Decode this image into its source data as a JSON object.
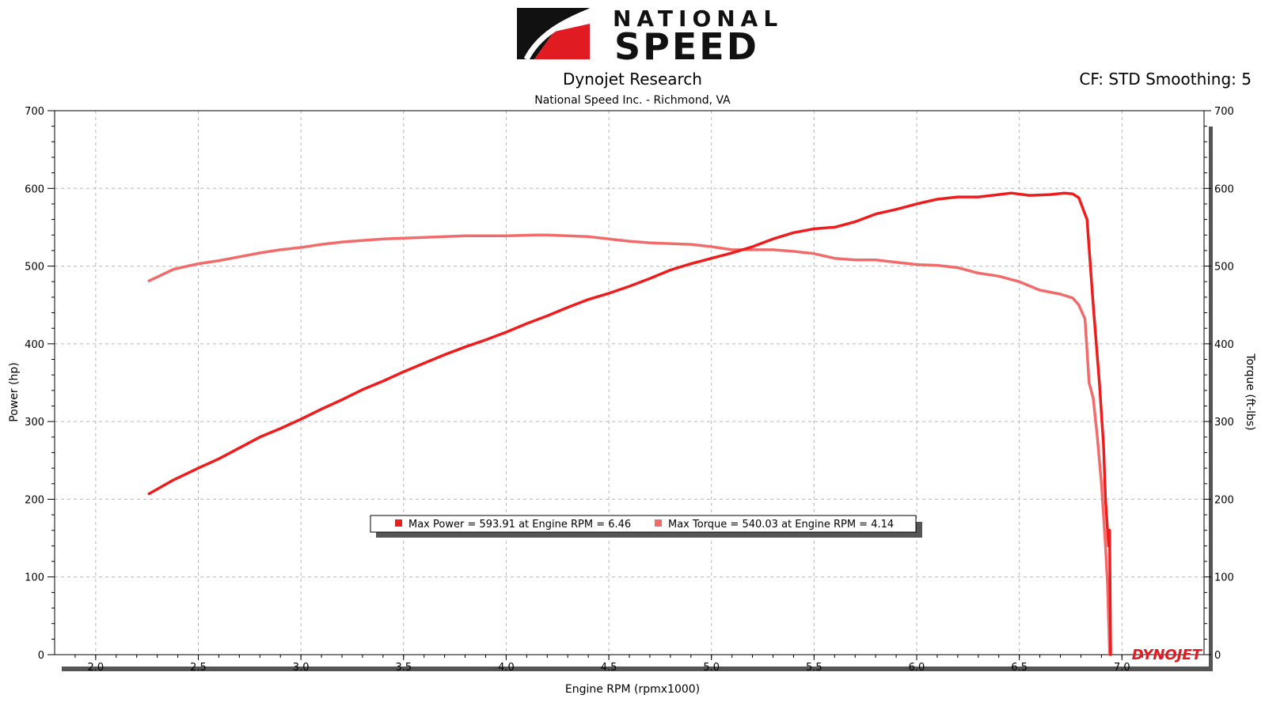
{
  "header": {
    "logo_line1": "NATIONAL",
    "logo_line2": "SPEED",
    "title": "Dynojet Research",
    "subtitle": "National Speed Inc. - Richmond, VA",
    "settings": "CF: STD Smoothing: 5"
  },
  "watermark": "DYNOJET",
  "colors": {
    "power": "#ee1c1c",
    "torque": "#f26b6b",
    "logo_red": "#e11b22"
  },
  "chart_data": {
    "type": "line",
    "xlabel": "Engine RPM (rpmx1000)",
    "ylabel": "Power (hp)",
    "y2label": "Torque (ft-lbs)",
    "xlim": [
      1.8,
      7.4
    ],
    "ylim": [
      0,
      700
    ],
    "y2lim": [
      0,
      700
    ],
    "x_ticks": [
      "2.0",
      "2.5",
      "3.0",
      "3.5",
      "4.0",
      "4.5",
      "5.0",
      "5.5",
      "6.0",
      "6.5",
      "7.0"
    ],
    "y_ticks": [
      "0",
      "100",
      "200",
      "300",
      "400",
      "500",
      "600",
      "700"
    ],
    "grid": true,
    "legend": {
      "placement": "center",
      "entries": [
        "Max Power = 593.91 at Engine RPM = 6.46",
        "Max Torque = 540.03 at Engine RPM = 4.14"
      ]
    },
    "series": [
      {
        "name": "Power",
        "axis": "left",
        "x": [
          2.26,
          2.38,
          2.5,
          2.6,
          2.7,
          2.8,
          2.9,
          3.0,
          3.1,
          3.2,
          3.3,
          3.4,
          3.5,
          3.6,
          3.7,
          3.8,
          3.9,
          4.0,
          4.1,
          4.2,
          4.3,
          4.4,
          4.5,
          4.6,
          4.7,
          4.8,
          4.9,
          5.0,
          5.1,
          5.2,
          5.3,
          5.4,
          5.5,
          5.6,
          5.7,
          5.8,
          5.9,
          6.0,
          6.1,
          6.2,
          6.3,
          6.4,
          6.46,
          6.55,
          6.65,
          6.72,
          6.76,
          6.79,
          6.83,
          6.86,
          6.89,
          6.91,
          6.92,
          6.935,
          6.94,
          6.945
        ],
        "values": [
          207,
          225,
          240,
          252,
          266,
          280,
          291,
          303,
          316,
          328,
          341,
          352,
          364,
          375,
          386,
          396,
          405,
          415,
          426,
          436,
          447,
          457,
          465,
          474,
          484,
          495,
          503,
          510,
          517,
          525,
          535,
          543,
          548,
          550,
          557,
          567,
          573,
          580,
          586,
          589,
          589,
          592,
          594,
          591,
          592,
          594,
          593,
          588,
          560,
          450,
          350,
          270,
          200,
          140,
          160,
          0
        ]
      },
      {
        "name": "Torque",
        "axis": "right",
        "x": [
          2.26,
          2.38,
          2.5,
          2.6,
          2.7,
          2.8,
          2.9,
          3.0,
          3.1,
          3.2,
          3.3,
          3.4,
          3.5,
          3.6,
          3.7,
          3.8,
          3.9,
          4.0,
          4.14,
          4.2,
          4.3,
          4.4,
          4.5,
          4.6,
          4.7,
          4.8,
          4.9,
          5.0,
          5.1,
          5.2,
          5.3,
          5.4,
          5.5,
          5.6,
          5.7,
          5.8,
          5.9,
          6.0,
          6.1,
          6.2,
          6.3,
          6.4,
          6.5,
          6.6,
          6.7,
          6.76,
          6.79,
          6.82,
          6.84,
          6.86,
          6.88,
          6.9,
          6.92,
          6.93,
          6.94
        ],
        "values": [
          481,
          496,
          503,
          507,
          512,
          517,
          521,
          524,
          528,
          531,
          533,
          535,
          536,
          537,
          538,
          539,
          539,
          539,
          540,
          540,
          539,
          538,
          535,
          532,
          530,
          529,
          528,
          525,
          521,
          521,
          521,
          519,
          516,
          510,
          508,
          508,
          505,
          502,
          501,
          498,
          491,
          487,
          480,
          469,
          464,
          459,
          450,
          432,
          350,
          330,
          280,
          220,
          140,
          90,
          0
        ]
      }
    ]
  }
}
